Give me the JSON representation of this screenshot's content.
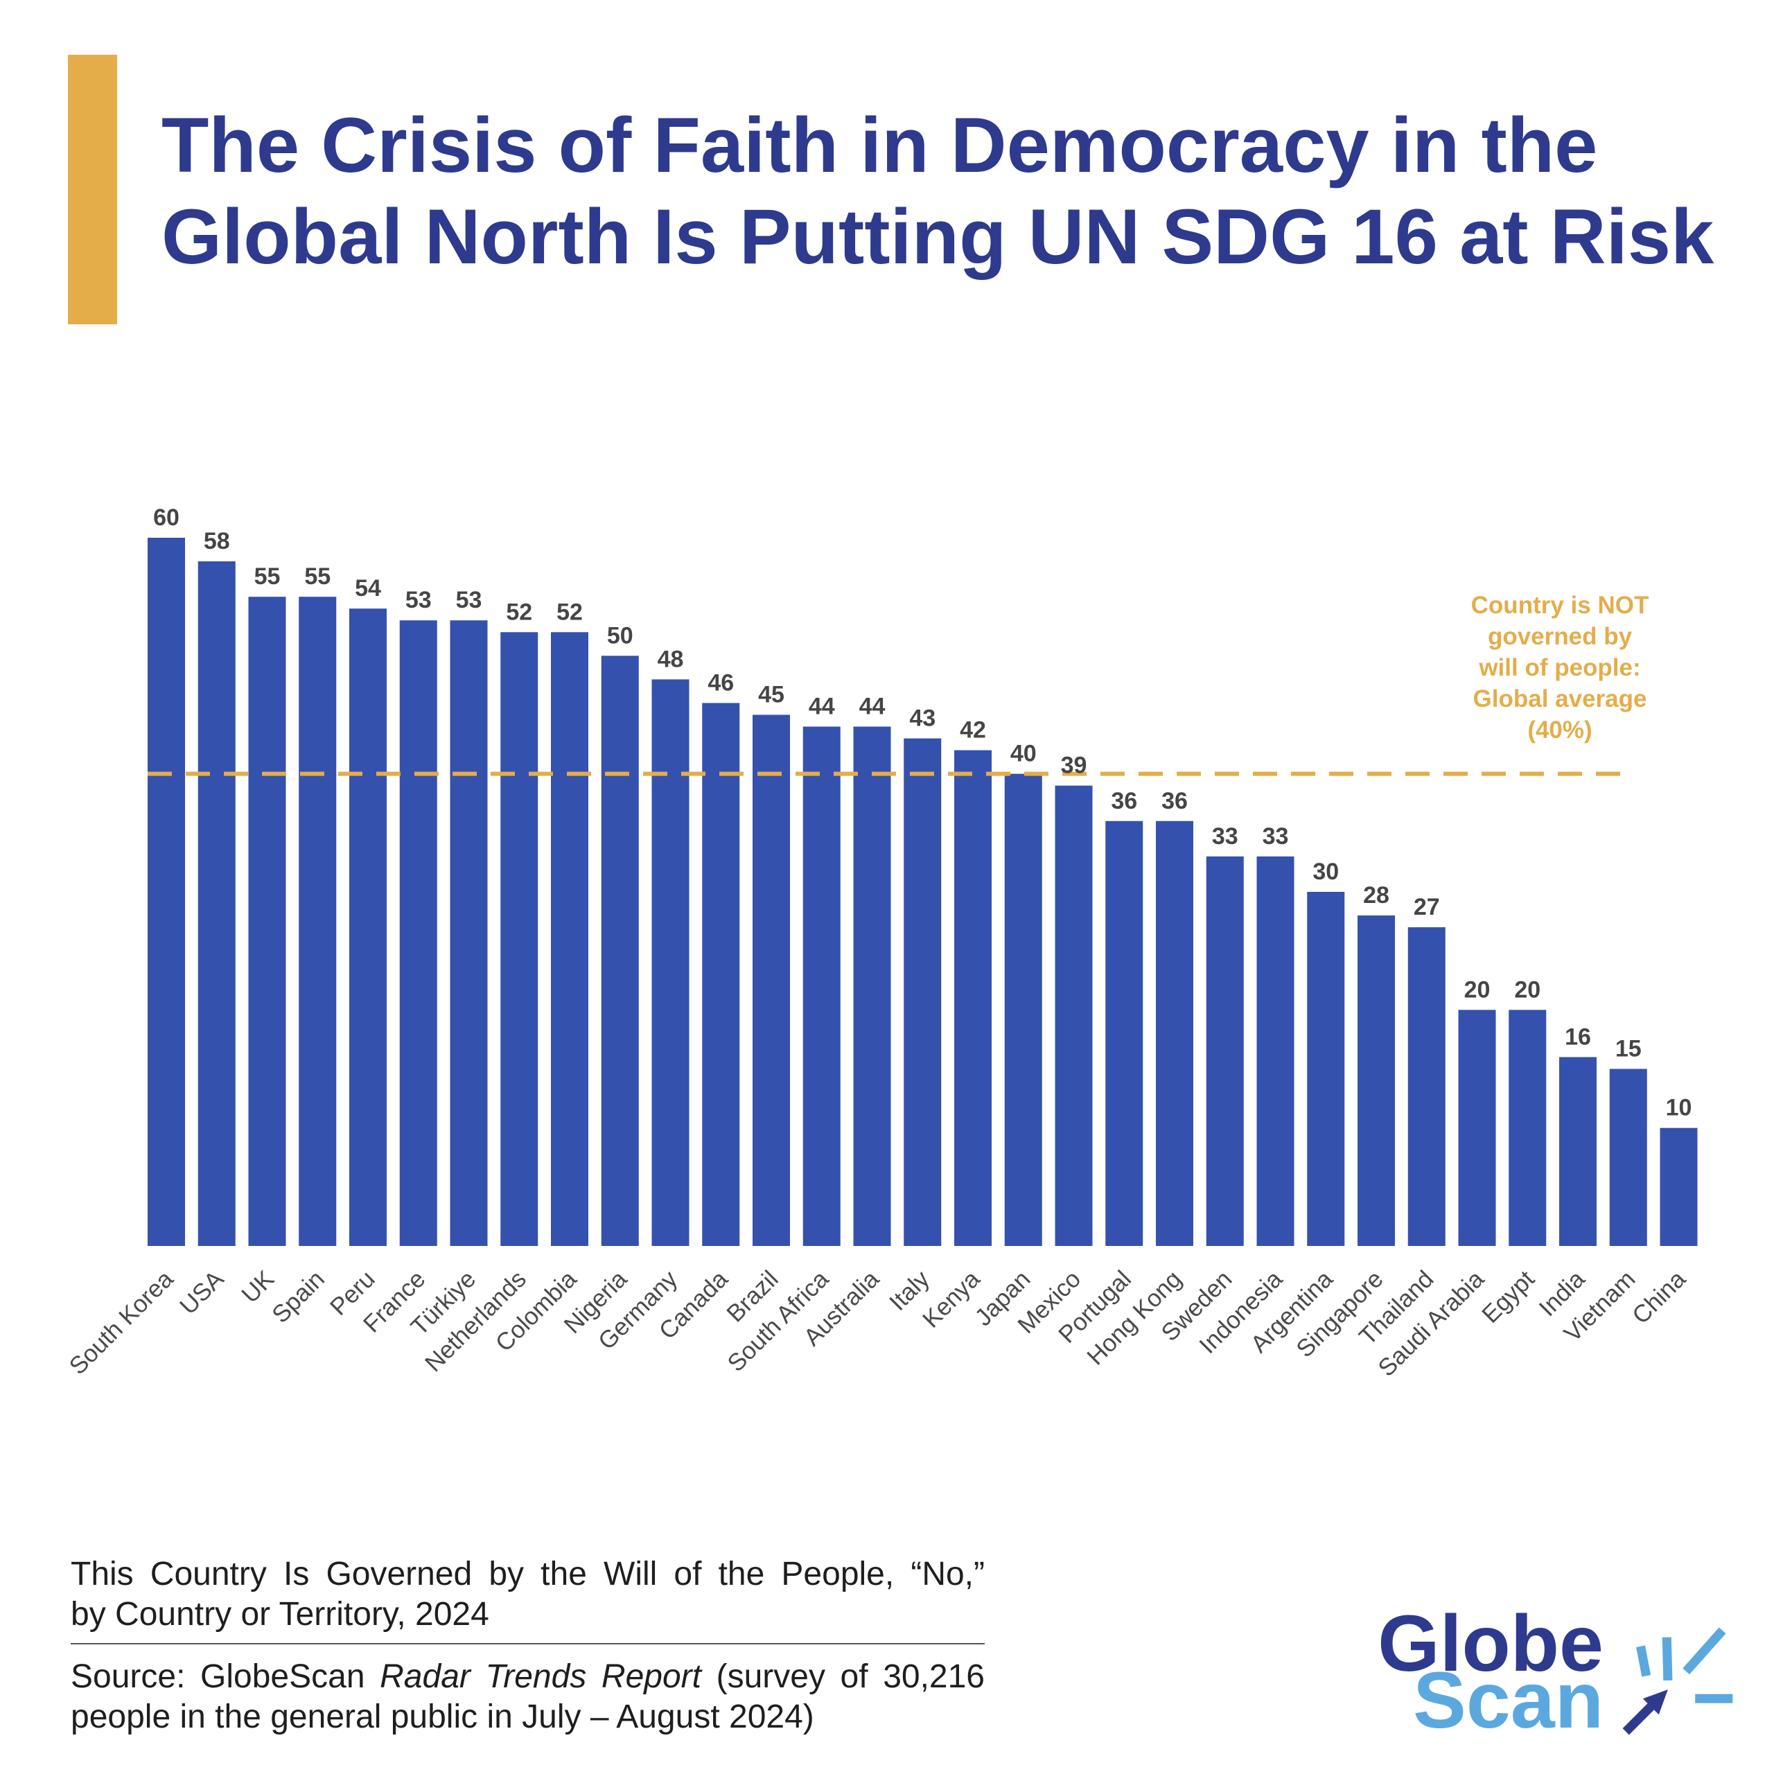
{
  "chart_data": {
    "type": "bar",
    "title_lines": [
      "The Crisis of Faith in Democracy in the",
      "Global North Is Putting UN SDG 16 at Risk"
    ],
    "caption_lines": [
      "This Country Is Governed by the Will of the People, “No,”",
      "by Country or Territory, 2024"
    ],
    "categories": [
      "South Korea",
      "USA",
      "UK",
      "Spain",
      "Peru",
      "France",
      "Türkiye",
      "Netherlands",
      "Colombia",
      "Nigeria",
      "Germany",
      "Canada",
      "Brazil",
      "South Africa",
      "Australia",
      "Italy",
      "Kenya",
      "Japan",
      "Mexico",
      "Portugal",
      "Hong Kong",
      "Sweden",
      "Indonesia",
      "Argentina",
      "Singapore",
      "Thailand",
      "Saudi Arabia",
      "Egypt",
      "India",
      "Vietnam",
      "China"
    ],
    "values": [
      60,
      58,
      55,
      55,
      54,
      53,
      53,
      52,
      52,
      50,
      48,
      46,
      45,
      44,
      44,
      43,
      42,
      40,
      39,
      36,
      36,
      33,
      33,
      30,
      28,
      27,
      20,
      20,
      16,
      15,
      10
    ],
    "xlabel": "",
    "ylabel": "",
    "ylim": [
      0,
      60
    ],
    "reference_line": {
      "value": 40,
      "label_lines": [
        "Country is NOT",
        "governed by",
        "will of people:",
        "Global average",
        "(40%)"
      ]
    }
  },
  "source": {
    "prefix": "Source: GlobeScan",
    "title": "Radar Trends Report",
    "line1_suffix": "(survey of 30,216",
    "line2": "people in the general public in July – August 2024)"
  },
  "logo": {
    "line1": "Globe",
    "line2": "Scan"
  },
  "colors": {
    "navy": "#2e3a8d",
    "bar": "#3451ae",
    "gold": "#e4ad4a",
    "lightblue": "#5ba8df"
  }
}
